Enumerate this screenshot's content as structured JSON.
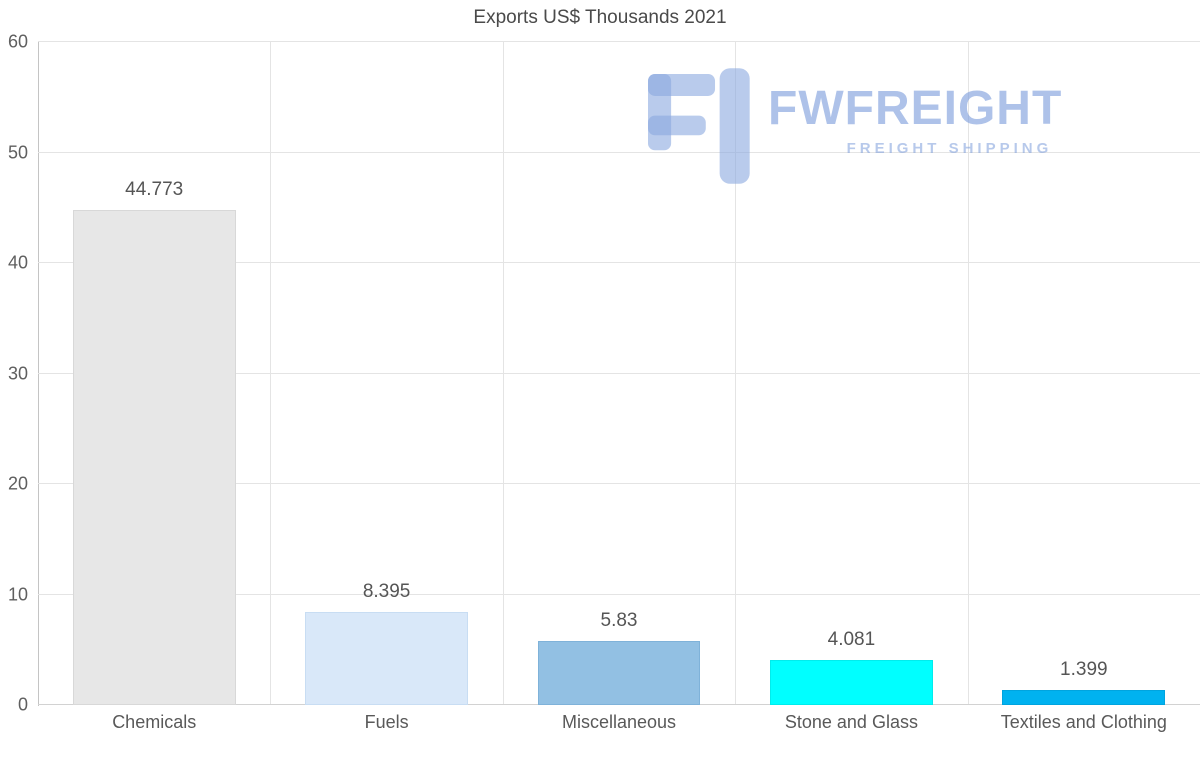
{
  "chart_data": {
    "type": "bar",
    "title": "Exports US$ Thousands 2021",
    "categories": [
      "Chemicals",
      "Fuels",
      "Miscellaneous",
      "Stone and Glass",
      "Textiles and Clothing"
    ],
    "values": [
      44.773,
      8.395,
      5.83,
      4.081,
      1.399
    ],
    "value_labels": [
      "44.773",
      "8.395",
      "5.83",
      "4.081",
      "1.399"
    ],
    "bar_colors": [
      "#e7e7e7",
      "#d9e8f9",
      "#92c0e3",
      "#00ffff",
      "#00b2f0"
    ],
    "bar_border_colors": [
      "#d8d8d8",
      "#c8ddf3",
      "#7fb2d9",
      "#00ecec",
      "#00a4df"
    ],
    "xlabel": "",
    "ylabel": "",
    "ylim": [
      0,
      60
    ],
    "yticks": [
      0,
      10,
      20,
      30,
      40,
      50,
      60
    ],
    "grid": true,
    "legend": false
  },
  "watermark": {
    "brand": "FWFREIGHT",
    "tagline": "FREIGHT SHIPPING",
    "color": "#9db6e6"
  }
}
